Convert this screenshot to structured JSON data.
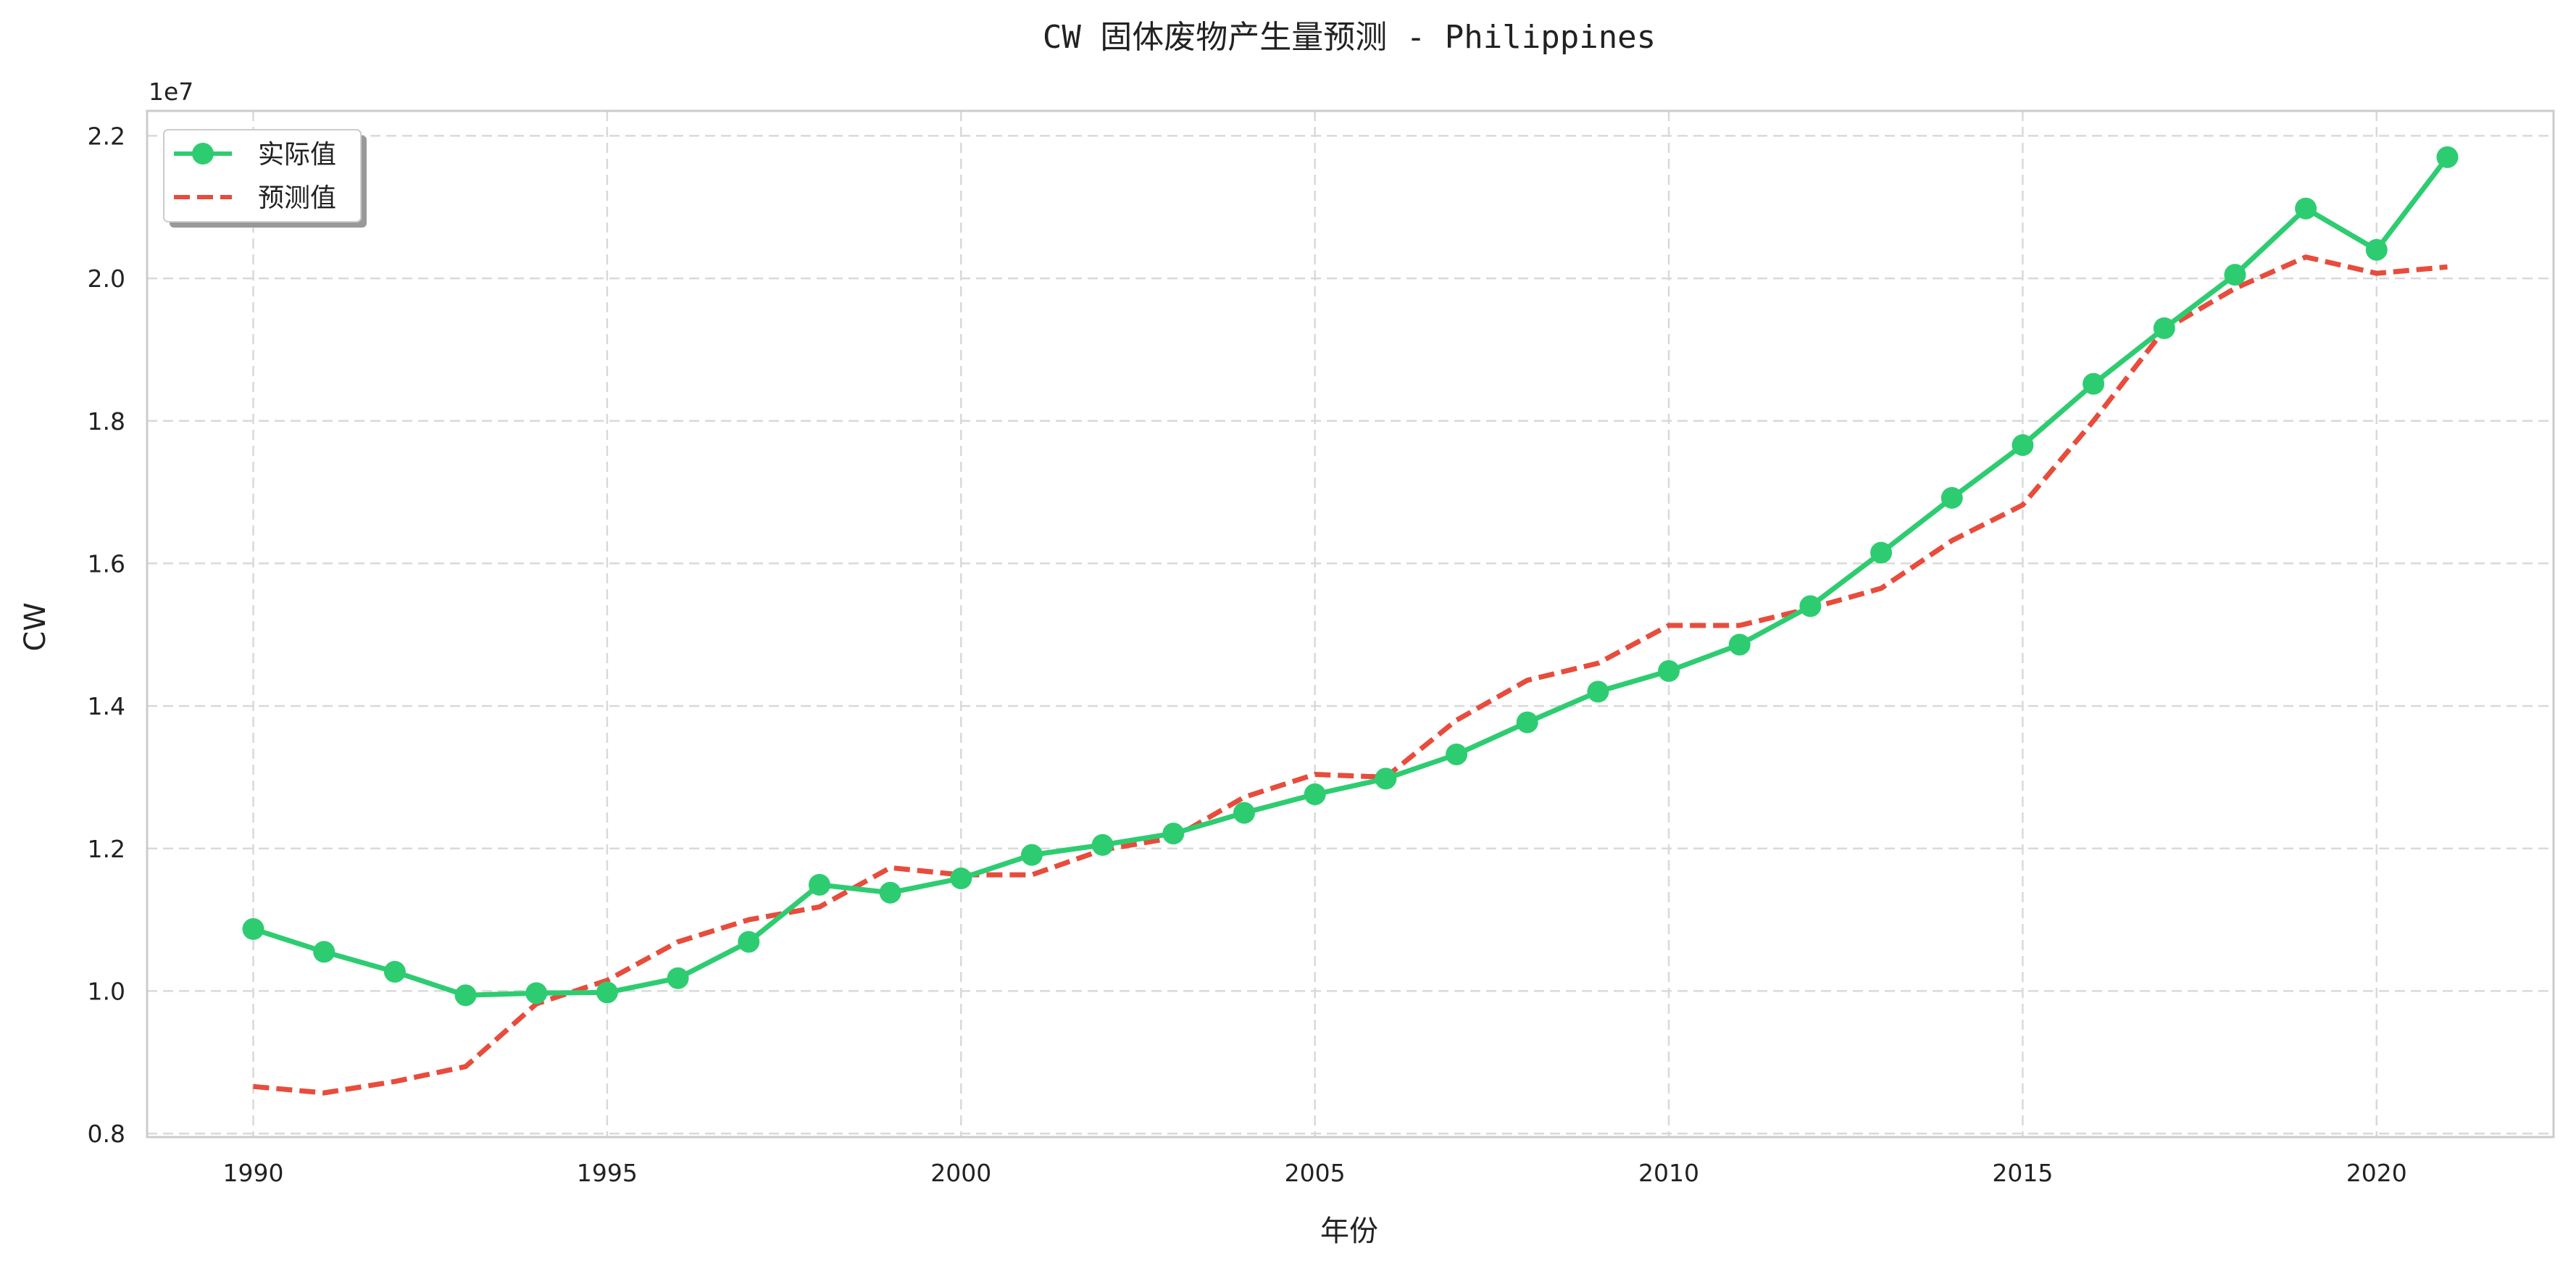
{
  "chart_data": {
    "type": "line",
    "title": "CW 固体废物产生量预测 - Philippines",
    "xlabel": "年份",
    "ylabel": "CW",
    "y_offset_label": "1e7",
    "y_scale": 10000000,
    "xlim": [
      1988.5,
      2022.5
    ],
    "ylim": [
      7950000,
      22350000
    ],
    "x_ticks": [
      1990,
      1995,
      2000,
      2005,
      2010,
      2015,
      2020
    ],
    "y_ticks": [
      8000000,
      10000000,
      12000000,
      14000000,
      16000000,
      18000000,
      20000000,
      22000000
    ],
    "y_tick_labels": [
      "0.8",
      "1.0",
      "1.2",
      "1.4",
      "1.6",
      "1.8",
      "2.0",
      "2.2"
    ],
    "grid": true,
    "legend_position": "upper-left",
    "x": [
      1990,
      1991,
      1992,
      1993,
      1994,
      1995,
      1996,
      1997,
      1998,
      1999,
      2000,
      2001,
      2002,
      2003,
      2004,
      2005,
      2006,
      2007,
      2008,
      2009,
      2010,
      2011,
      2012,
      2013,
      2014,
      2015,
      2016,
      2017,
      2018,
      2019,
      2020,
      2021
    ],
    "series": [
      {
        "name": "实际值",
        "style": "solid-marker",
        "color": "#2ecc71",
        "values": [
          10870000,
          10550000,
          10270000,
          9940000,
          9970000,
          9980000,
          10180000,
          10690000,
          11490000,
          11380000,
          11580000,
          11910000,
          12050000,
          12210000,
          12500000,
          12760000,
          12980000,
          13320000,
          13770000,
          14200000,
          14490000,
          14860000,
          15400000,
          16150000,
          16920000,
          17660000,
          18520000,
          19300000,
          20050000,
          20980000,
          20400000,
          21700000
        ]
      },
      {
        "name": "预测值",
        "style": "dashed",
        "color": "#e74c3c",
        "values": [
          8660000,
          8570000,
          8730000,
          8940000,
          9820000,
          10150000,
          10690000,
          11000000,
          11180000,
          11730000,
          11630000,
          11630000,
          11980000,
          12150000,
          12720000,
          13040000,
          13000000,
          13800000,
          14360000,
          14600000,
          15130000,
          15130000,
          15370000,
          15650000,
          16320000,
          16820000,
          18000000,
          19280000,
          19860000,
          20300000,
          20070000,
          20160000
        ]
      }
    ]
  }
}
